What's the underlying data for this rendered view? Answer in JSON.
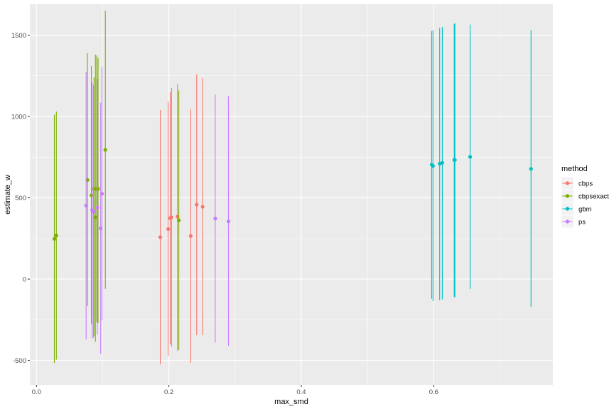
{
  "chart_data": {
    "type": "scatter",
    "subtype": "pointrange",
    "title": "",
    "xlabel": "max_smd",
    "ylabel": "estimate_w",
    "xlim": [
      -0.01,
      0.78
    ],
    "ylim": [
      -650,
      1690
    ],
    "x_ticks": [
      0.0,
      0.2,
      0.4,
      0.6
    ],
    "x_tick_labels": [
      "0.0",
      "0.2",
      "0.4",
      "0.6"
    ],
    "y_ticks": [
      -500,
      0,
      500,
      1000,
      1500
    ],
    "y_tick_labels": [
      "-500",
      "0",
      "500",
      "1000",
      "1500"
    ],
    "grid": true,
    "legend": {
      "title": "method",
      "position": "right"
    },
    "series": [
      {
        "name": "cbps",
        "color": "#F8766D",
        "points": [
          {
            "x": 0.187,
            "y": 258,
            "lo": -525,
            "hi": 1040
          },
          {
            "x": 0.199,
            "y": 308,
            "lo": -470,
            "hi": 1090
          },
          {
            "x": 0.202,
            "y": 375,
            "lo": -400,
            "hi": 1150
          },
          {
            "x": 0.204,
            "y": 380,
            "lo": -415,
            "hi": 1175
          },
          {
            "x": 0.213,
            "y": 385,
            "lo": -440,
            "hi": 1200
          },
          {
            "x": 0.233,
            "y": 265,
            "lo": -515,
            "hi": 1045
          },
          {
            "x": 0.242,
            "y": 458,
            "lo": -345,
            "hi": 1260
          },
          {
            "x": 0.251,
            "y": 445,
            "lo": -345,
            "hi": 1235
          }
        ]
      },
      {
        "name": "cbpsexact",
        "color": "#7CAE00",
        "points": [
          {
            "x": 0.027,
            "y": 248,
            "lo": -515,
            "hi": 1010
          },
          {
            "x": 0.03,
            "y": 268,
            "lo": -495,
            "hi": 1030
          },
          {
            "x": 0.077,
            "y": 610,
            "lo": -165,
            "hi": 1390
          },
          {
            "x": 0.083,
            "y": 515,
            "lo": -275,
            "hi": 1310
          },
          {
            "x": 0.087,
            "y": 555,
            "lo": -350,
            "hi": 1240
          },
          {
            "x": 0.089,
            "y": 380,
            "lo": -385,
            "hi": 1380
          },
          {
            "x": 0.091,
            "y": 555,
            "lo": -265,
            "hi": 1375
          },
          {
            "x": 0.093,
            "y": 555,
            "lo": -270,
            "hi": 1360
          },
          {
            "x": 0.104,
            "y": 795,
            "lo": -60,
            "hi": 1650
          },
          {
            "x": 0.215,
            "y": 362,
            "lo": -435,
            "hi": 1160
          }
        ]
      },
      {
        "name": "gbm",
        "color": "#00BFC4",
        "points": [
          {
            "x": 0.597,
            "y": 703,
            "lo": -120,
            "hi": 1525
          },
          {
            "x": 0.599,
            "y": 696,
            "lo": -135,
            "hi": 1530
          },
          {
            "x": 0.609,
            "y": 710,
            "lo": -130,
            "hi": 1545
          },
          {
            "x": 0.613,
            "y": 715,
            "lo": -125,
            "hi": 1550
          },
          {
            "x": 0.631,
            "y": 733,
            "lo": -110,
            "hi": 1570
          },
          {
            "x": 0.632,
            "y": 733,
            "lo": -112,
            "hi": 1572
          },
          {
            "x": 0.655,
            "y": 752,
            "lo": -60,
            "hi": 1565
          },
          {
            "x": 0.747,
            "y": 678,
            "lo": -170,
            "hi": 1530
          }
        ]
      },
      {
        "name": "ps",
        "color": "#C77CFF",
        "points": [
          {
            "x": 0.075,
            "y": 452,
            "lo": -370,
            "hi": 1275
          },
          {
            "x": 0.084,
            "y": 425,
            "lo": -365,
            "hi": 1210
          },
          {
            "x": 0.086,
            "y": 415,
            "lo": -360,
            "hi": 1195
          },
          {
            "x": 0.092,
            "y": 440,
            "lo": -340,
            "hi": 1230
          },
          {
            "x": 0.097,
            "y": 312,
            "lo": -460,
            "hi": 1085
          },
          {
            "x": 0.099,
            "y": 525,
            "lo": -255,
            "hi": 1305
          },
          {
            "x": 0.27,
            "y": 372,
            "lo": -390,
            "hi": 1135
          },
          {
            "x": 0.29,
            "y": 355,
            "lo": -410,
            "hi": 1125
          }
        ]
      }
    ]
  },
  "colors": {
    "panel_background": "#EBEBEB",
    "grid_major": "#FFFFFF",
    "tick_text": "#4D4D4D"
  }
}
